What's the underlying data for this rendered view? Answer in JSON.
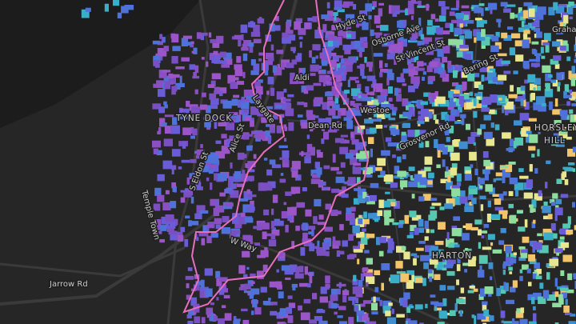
{
  "map": {
    "labels": [
      "TYNE DOCK",
      "Dean Rd",
      "Temple Town",
      "S Eldon St",
      "Jarrow Rd",
      "W Way",
      "Laygate",
      "Aldi",
      "Hyde St",
      "Osborne Ave",
      "St Vincent St",
      "Baring St",
      "Grosvenor Rd",
      "HORSLEY",
      "HILL",
      "HARTON",
      "Westoe",
      "Alice St",
      "Grahan"
    ]
  }
}
